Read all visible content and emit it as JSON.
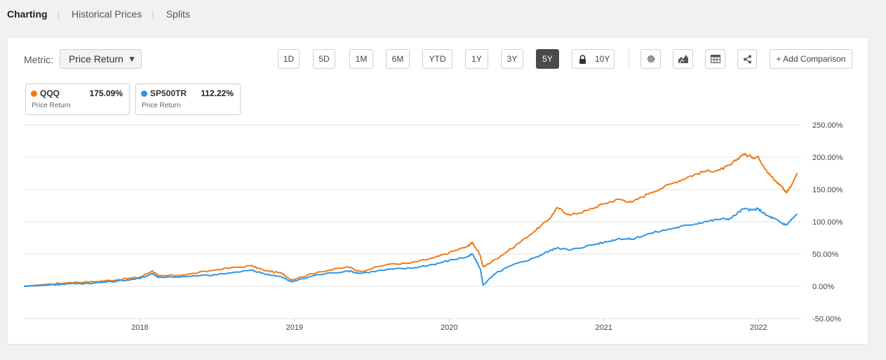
{
  "tabs": [
    "Charting",
    "Historical Prices",
    "Splits"
  ],
  "metric": {
    "label": "Metric:",
    "selected": "Price Return"
  },
  "ranges": [
    "1D",
    "5D",
    "1M",
    "6M",
    "YTD",
    "1Y",
    "3Y",
    "5Y",
    "10Y"
  ],
  "active_range": "5Y",
  "tools": [
    "gear-icon",
    "chart-type-icon",
    "table-icon",
    "share-icon"
  ],
  "add_comparison": "+ Add Comparison",
  "legend": [
    {
      "name": "QQQ",
      "value": "175.09%",
      "sub": "Price Return",
      "color": "#f07b15"
    },
    {
      "name": "SP500TR",
      "value": "112.22%",
      "sub": "Price Return",
      "color": "#2d96e8"
    }
  ],
  "chart_data": {
    "type": "line",
    "x_tick_labels": [
      "2018",
      "2019",
      "2020",
      "2021",
      "2022"
    ],
    "y_tick_labels": [
      "250.00%",
      "200.00%",
      "150.00%",
      "100.00%",
      "50.00%",
      "0.00%",
      "-50.00%"
    ],
    "ylim": [
      -50,
      250
    ],
    "grid": true,
    "series": [
      {
        "name": "QQQ",
        "color": "#f07b15",
        "points": [
          [
            2017.25,
            0
          ],
          [
            2017.4,
            3
          ],
          [
            2017.55,
            6
          ],
          [
            2017.7,
            7
          ],
          [
            2017.85,
            10
          ],
          [
            2018.0,
            14
          ],
          [
            2018.08,
            24
          ],
          [
            2018.12,
            16
          ],
          [
            2018.3,
            18
          ],
          [
            2018.5,
            26
          ],
          [
            2018.72,
            32
          ],
          [
            2018.8,
            25
          ],
          [
            2018.92,
            20
          ],
          [
            2018.98,
            10
          ],
          [
            2019.15,
            22
          ],
          [
            2019.35,
            30
          ],
          [
            2019.42,
            23
          ],
          [
            2019.6,
            34
          ],
          [
            2019.75,
            36
          ],
          [
            2019.9,
            44
          ],
          [
            2020.0,
            52
          ],
          [
            2020.12,
            62
          ],
          [
            2020.15,
            68
          ],
          [
            2020.2,
            48
          ],
          [
            2020.22,
            30
          ],
          [
            2020.3,
            42
          ],
          [
            2020.4,
            58
          ],
          [
            2020.55,
            85
          ],
          [
            2020.65,
            105
          ],
          [
            2020.7,
            122
          ],
          [
            2020.78,
            110
          ],
          [
            2020.9,
            118
          ],
          [
            2021.0,
            128
          ],
          [
            2021.1,
            135
          ],
          [
            2021.18,
            130
          ],
          [
            2021.3,
            145
          ],
          [
            2021.45,
            160
          ],
          [
            2021.55,
            170
          ],
          [
            2021.65,
            178
          ],
          [
            2021.75,
            180
          ],
          [
            2021.82,
            188
          ],
          [
            2021.9,
            205
          ],
          [
            2021.96,
            200
          ],
          [
            2022.0,
            200
          ],
          [
            2022.05,
            180
          ],
          [
            2022.1,
            165
          ],
          [
            2022.15,
            155
          ],
          [
            2022.18,
            145
          ],
          [
            2022.22,
            160
          ],
          [
            2022.25,
            175.09
          ]
        ]
      },
      {
        "name": "SP500TR",
        "color": "#2d96e8",
        "points": [
          [
            2017.25,
            0
          ],
          [
            2017.4,
            2
          ],
          [
            2017.55,
            4
          ],
          [
            2017.7,
            5
          ],
          [
            2017.85,
            8
          ],
          [
            2018.0,
            12
          ],
          [
            2018.08,
            20
          ],
          [
            2018.12,
            14
          ],
          [
            2018.3,
            15
          ],
          [
            2018.5,
            18
          ],
          [
            2018.72,
            25
          ],
          [
            2018.8,
            20
          ],
          [
            2018.92,
            14
          ],
          [
            2018.98,
            7
          ],
          [
            2019.15,
            18
          ],
          [
            2019.35,
            24
          ],
          [
            2019.42,
            20
          ],
          [
            2019.6,
            26
          ],
          [
            2019.75,
            28
          ],
          [
            2019.9,
            34
          ],
          [
            2020.0,
            40
          ],
          [
            2020.12,
            46
          ],
          [
            2020.15,
            50
          ],
          [
            2020.2,
            28
          ],
          [
            2020.22,
            2
          ],
          [
            2020.3,
            20
          ],
          [
            2020.4,
            32
          ],
          [
            2020.55,
            44
          ],
          [
            2020.65,
            55
          ],
          [
            2020.7,
            60
          ],
          [
            2020.78,
            56
          ],
          [
            2020.9,
            63
          ],
          [
            2021.0,
            68
          ],
          [
            2021.1,
            74
          ],
          [
            2021.18,
            73
          ],
          [
            2021.3,
            82
          ],
          [
            2021.45,
            90
          ],
          [
            2021.55,
            95
          ],
          [
            2021.65,
            100
          ],
          [
            2021.75,
            104
          ],
          [
            2021.82,
            105
          ],
          [
            2021.9,
            120
          ],
          [
            2021.96,
            118
          ],
          [
            2022.0,
            120
          ],
          [
            2022.05,
            110
          ],
          [
            2022.1,
            105
          ],
          [
            2022.15,
            98
          ],
          [
            2022.18,
            95
          ],
          [
            2022.22,
            105
          ],
          [
            2022.25,
            112.22
          ]
        ]
      }
    ]
  }
}
